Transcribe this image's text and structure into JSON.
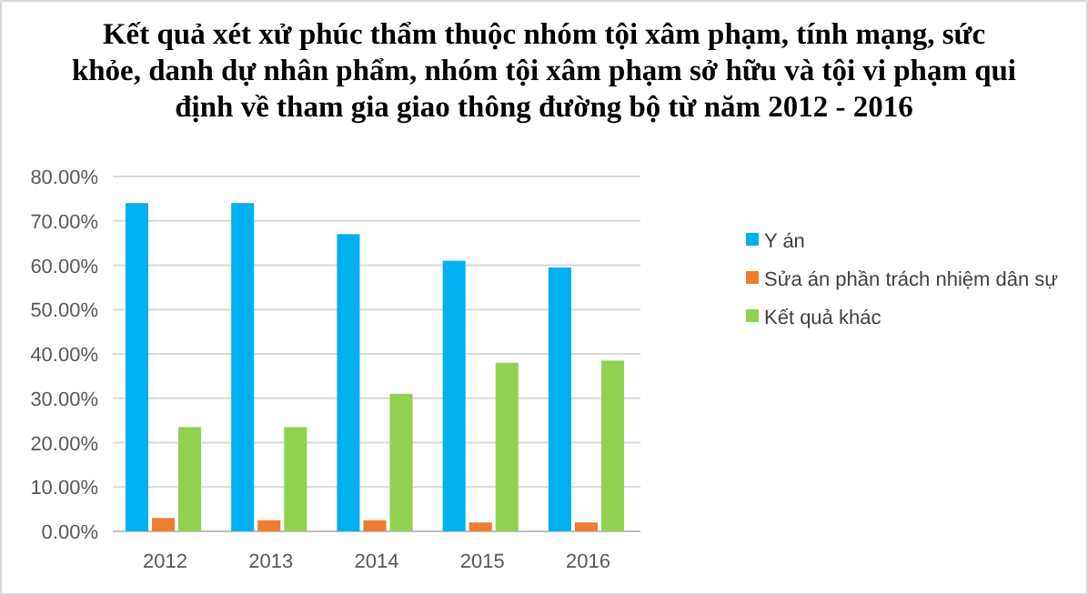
{
  "chart_data": {
    "type": "bar",
    "title": "Kết quả xét xử phúc thẩm thuộc nhóm tội xâm phạm, tính mạng, sức khỏe, danh dự nhân phẩm, nhóm tội xâm phạm sở hữu và tội vi phạm qui định về tham gia giao thông đường bộ từ năm 2012 - 2016",
    "categories": [
      "2012",
      "2013",
      "2014",
      "2015",
      "2016"
    ],
    "series": [
      {
        "name": "Y án",
        "color": "#00b0f0",
        "values": [
          74,
          74,
          67,
          61,
          59.5
        ]
      },
      {
        "name": "Sửa án phần trách nhiệm dân sự",
        "color": "#ed7d31",
        "values": [
          3,
          2.5,
          2.5,
          2,
          2
        ]
      },
      {
        "name": "Kết quả khác",
        "color": "#92d050",
        "values": [
          23.5,
          23.5,
          31,
          38,
          38.5
        ]
      }
    ],
    "ylim": [
      0,
      80
    ],
    "yticks": [
      {
        "value": 0,
        "label": "0.00%"
      },
      {
        "value": 10,
        "label": "10.00%"
      },
      {
        "value": 20,
        "label": "20.00%"
      },
      {
        "value": 30,
        "label": "30.00%"
      },
      {
        "value": 40,
        "label": "40.00%"
      },
      {
        "value": 50,
        "label": "50.00%"
      },
      {
        "value": 60,
        "label": "60.00%"
      },
      {
        "value": 70,
        "label": "70.00%"
      },
      {
        "value": 80,
        "label": "80.00%"
      }
    ],
    "grid": "y",
    "legend": "right"
  }
}
